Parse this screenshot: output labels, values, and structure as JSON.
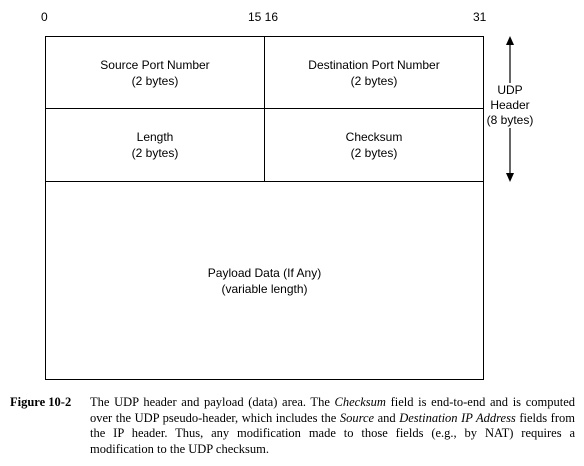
{
  "bit_labels": {
    "start": "0",
    "middle": "15 16",
    "end": "31"
  },
  "fields": {
    "source_port": {
      "name": "Source Port Number",
      "size": "(2 bytes)"
    },
    "destination_port": {
      "name": "Destination Port Number",
      "size": "(2 bytes)"
    },
    "length": {
      "name": "Length",
      "size": "(2 bytes)"
    },
    "checksum": {
      "name": "Checksum",
      "size": "(2 bytes)"
    },
    "payload": {
      "name": "Payload Data (If Any)",
      "size": "(variable length)"
    }
  },
  "header_span": {
    "line1": "UDP",
    "line2": "Header",
    "line3": "(8 bytes)"
  },
  "caption": {
    "number": "Figure 10-2",
    "t1": "The UDP header and payload (data) area. The ",
    "e1": "Checksum",
    "t2": " field is end-to-end and is computed over the UDP pseudo-header, which includes the ",
    "e2": "Source",
    "t3": " and ",
    "e3": "Destination IP Address",
    "t4": " fields from the IP header. Thus, any modification made to those fields (e.g., by NAT) requires a modification to the UDP checksum."
  }
}
